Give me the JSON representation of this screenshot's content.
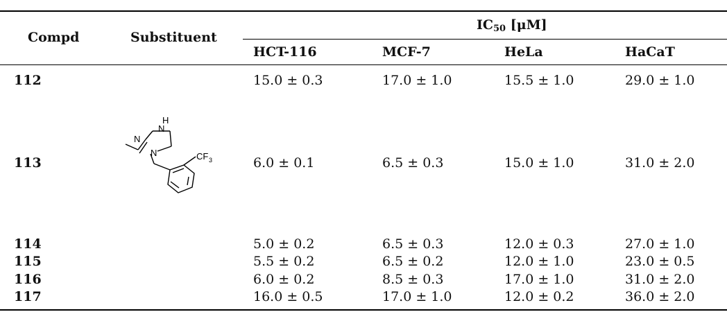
{
  "table": {
    "headers": {
      "compd": "Compd",
      "substituent": "Substituent",
      "ic50_prefix": "IC",
      "ic50_sub": "50",
      "ic50_unit": " [μM]",
      "cells": [
        "HCT-116",
        "MCF-7",
        "HeLa",
        "HaCaT"
      ]
    },
    "structure": {
      "label_h": "H",
      "label_n_top": "N",
      "label_n_imine": "N",
      "label_n_ring": "N",
      "label_cf3": "CF",
      "label_cf3_sub": "3"
    },
    "rows": [
      {
        "compd": "112",
        "values": [
          "15.0 ± 0.3",
          "17.0 ± 1.0",
          "15.5 ± 1.0",
          "29.0 ± 1.0"
        ]
      },
      {
        "compd": "113",
        "values": [
          "6.0 ± 0.1",
          "6.5 ± 0.3",
          "15.0 ± 1.0",
          "31.0 ± 2.0"
        ]
      },
      {
        "compd": "114",
        "values": [
          "5.0 ± 0.2",
          "6.5 ± 0.3",
          "12.0 ± 0.3",
          "27.0 ± 1.0"
        ]
      },
      {
        "compd": "115",
        "values": [
          "5.5 ± 0.2",
          "6.5 ± 0.2",
          "12.0 ± 1.0",
          "23.0 ± 0.5"
        ]
      },
      {
        "compd": "116",
        "values": [
          "6.0 ± 0.2",
          "8.5 ± 0.3",
          "17.0 ± 1.0",
          "31.0 ± 2.0"
        ]
      },
      {
        "compd": "117",
        "values": [
          "16.0 ± 0.5",
          "17.0 ± 1.0",
          "12.0 ± 0.2",
          "36.0 ± 2.0"
        ]
      }
    ]
  }
}
